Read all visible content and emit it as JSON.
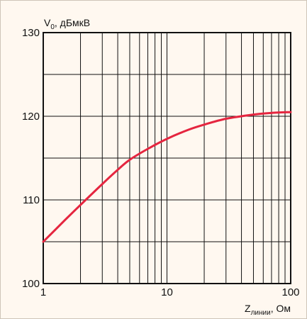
{
  "chart_data": {
    "type": "line",
    "x_scale": "log",
    "xlim": [
      1,
      100
    ],
    "ylim": [
      100,
      130
    ],
    "grid": true,
    "x_ticks": [
      "1",
      "10",
      "100"
    ],
    "y_ticks": [
      "100",
      "110",
      "120",
      "130"
    ],
    "ylabel": {
      "main": "V",
      "sub": "0",
      "rest": ", дБмкВ"
    },
    "xlabel": {
      "main": "Z",
      "sub": "линии",
      "rest": ", Ом"
    },
    "series": [
      {
        "color": "#e5253f",
        "x": [
          1,
          1.5,
          2,
          3,
          4,
          5,
          7,
          10,
          15,
          20,
          30,
          50,
          70,
          100
        ],
        "y": [
          105.0,
          107.6,
          109.4,
          111.9,
          113.6,
          114.8,
          116.1,
          117.3,
          118.4,
          119.0,
          119.7,
          120.2,
          120.4,
          120.5
        ]
      }
    ],
    "colors": {
      "background": "#fff8f0",
      "grid": "#111111",
      "line": "#e5253f"
    }
  }
}
